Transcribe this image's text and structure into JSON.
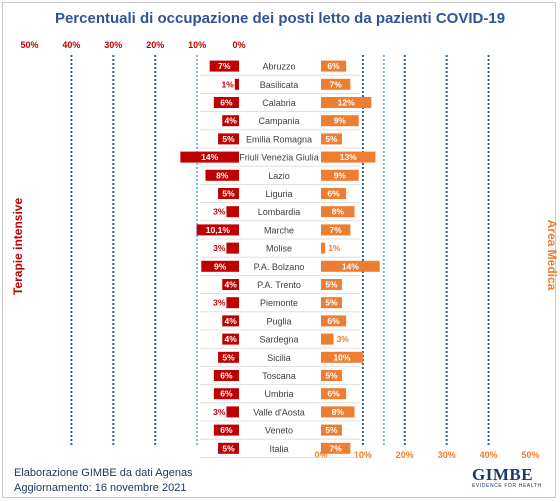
{
  "title": "Percentuali di occupazione dei posti letto da pazienti COVID-19",
  "left_axis_label": "Terapie intensive",
  "right_axis_label": "Area Medica",
  "footer_line1": "Elaborazione GIMBE da dati Agenas",
  "footer_line2": "Aggiornamento: 16 novembre 2021",
  "logo_text": "GIMBE",
  "logo_subtext": "EVIDENCE FOR HEALTH",
  "colors": {
    "intensive": "#c00000",
    "medical": "#ed7d31",
    "guide_dark": "#2e5f9e",
    "guide_light": "#7fb3e0",
    "title": "#2f5597"
  },
  "chart_data": {
    "type": "bar",
    "categories": [
      "Abruzzo",
      "Basilicata",
      "Calabria",
      "Campania",
      "Emilia Romagna",
      "Friuli Venezia Giulia",
      "Lazio",
      "Liguria",
      "Lombardia",
      "Marche",
      "Molise",
      "P.A. Bolzano",
      "P.A. Trento",
      "Piemonte",
      "Puglia",
      "Sardegna",
      "Sicilia",
      "Toscana",
      "Umbria",
      "Valle d'Aosta",
      "Veneto",
      "Italia"
    ],
    "series": [
      {
        "name": "Terapie intensive",
        "values": [
          7,
          1,
          6,
          4,
          5,
          14,
          8,
          5,
          3,
          10.1,
          3,
          9,
          4,
          3,
          4,
          4,
          5,
          6,
          6,
          3,
          6,
          5
        ],
        "labels": [
          "7%",
          "1%",
          "6%",
          "4%",
          "5%",
          "14%",
          "8%",
          "5%",
          "3%",
          "10,1%",
          "3%",
          "9%",
          "4%",
          "3%",
          "4%",
          "4%",
          "5%",
          "6%",
          "6%",
          "3%",
          "6%",
          "5%"
        ]
      },
      {
        "name": "Area Medica",
        "values": [
          6,
          7,
          12,
          9,
          5,
          13,
          9,
          6,
          8,
          7,
          1,
          14,
          5,
          5,
          6,
          3,
          10,
          5,
          6,
          8,
          5,
          7
        ],
        "labels": [
          "6%",
          "7%",
          "12%",
          "9%",
          "5%",
          "13%",
          "9%",
          "6%",
          "8%",
          "7%",
          "1%",
          "14%",
          "5%",
          "5%",
          "6%",
          "3%",
          "10%",
          "5%",
          "6%",
          "8%",
          "5%",
          "7%"
        ]
      }
    ],
    "left_ticks": [
      "50%",
      "40%",
      "30%",
      "20%",
      "10%",
      "0%"
    ],
    "right_ticks": [
      "0%",
      "10%",
      "20%",
      "30%",
      "40%",
      "50%"
    ],
    "xlim": [
      0,
      50
    ],
    "thresholds": {
      "intensive": 10,
      "medical": 15
    }
  }
}
